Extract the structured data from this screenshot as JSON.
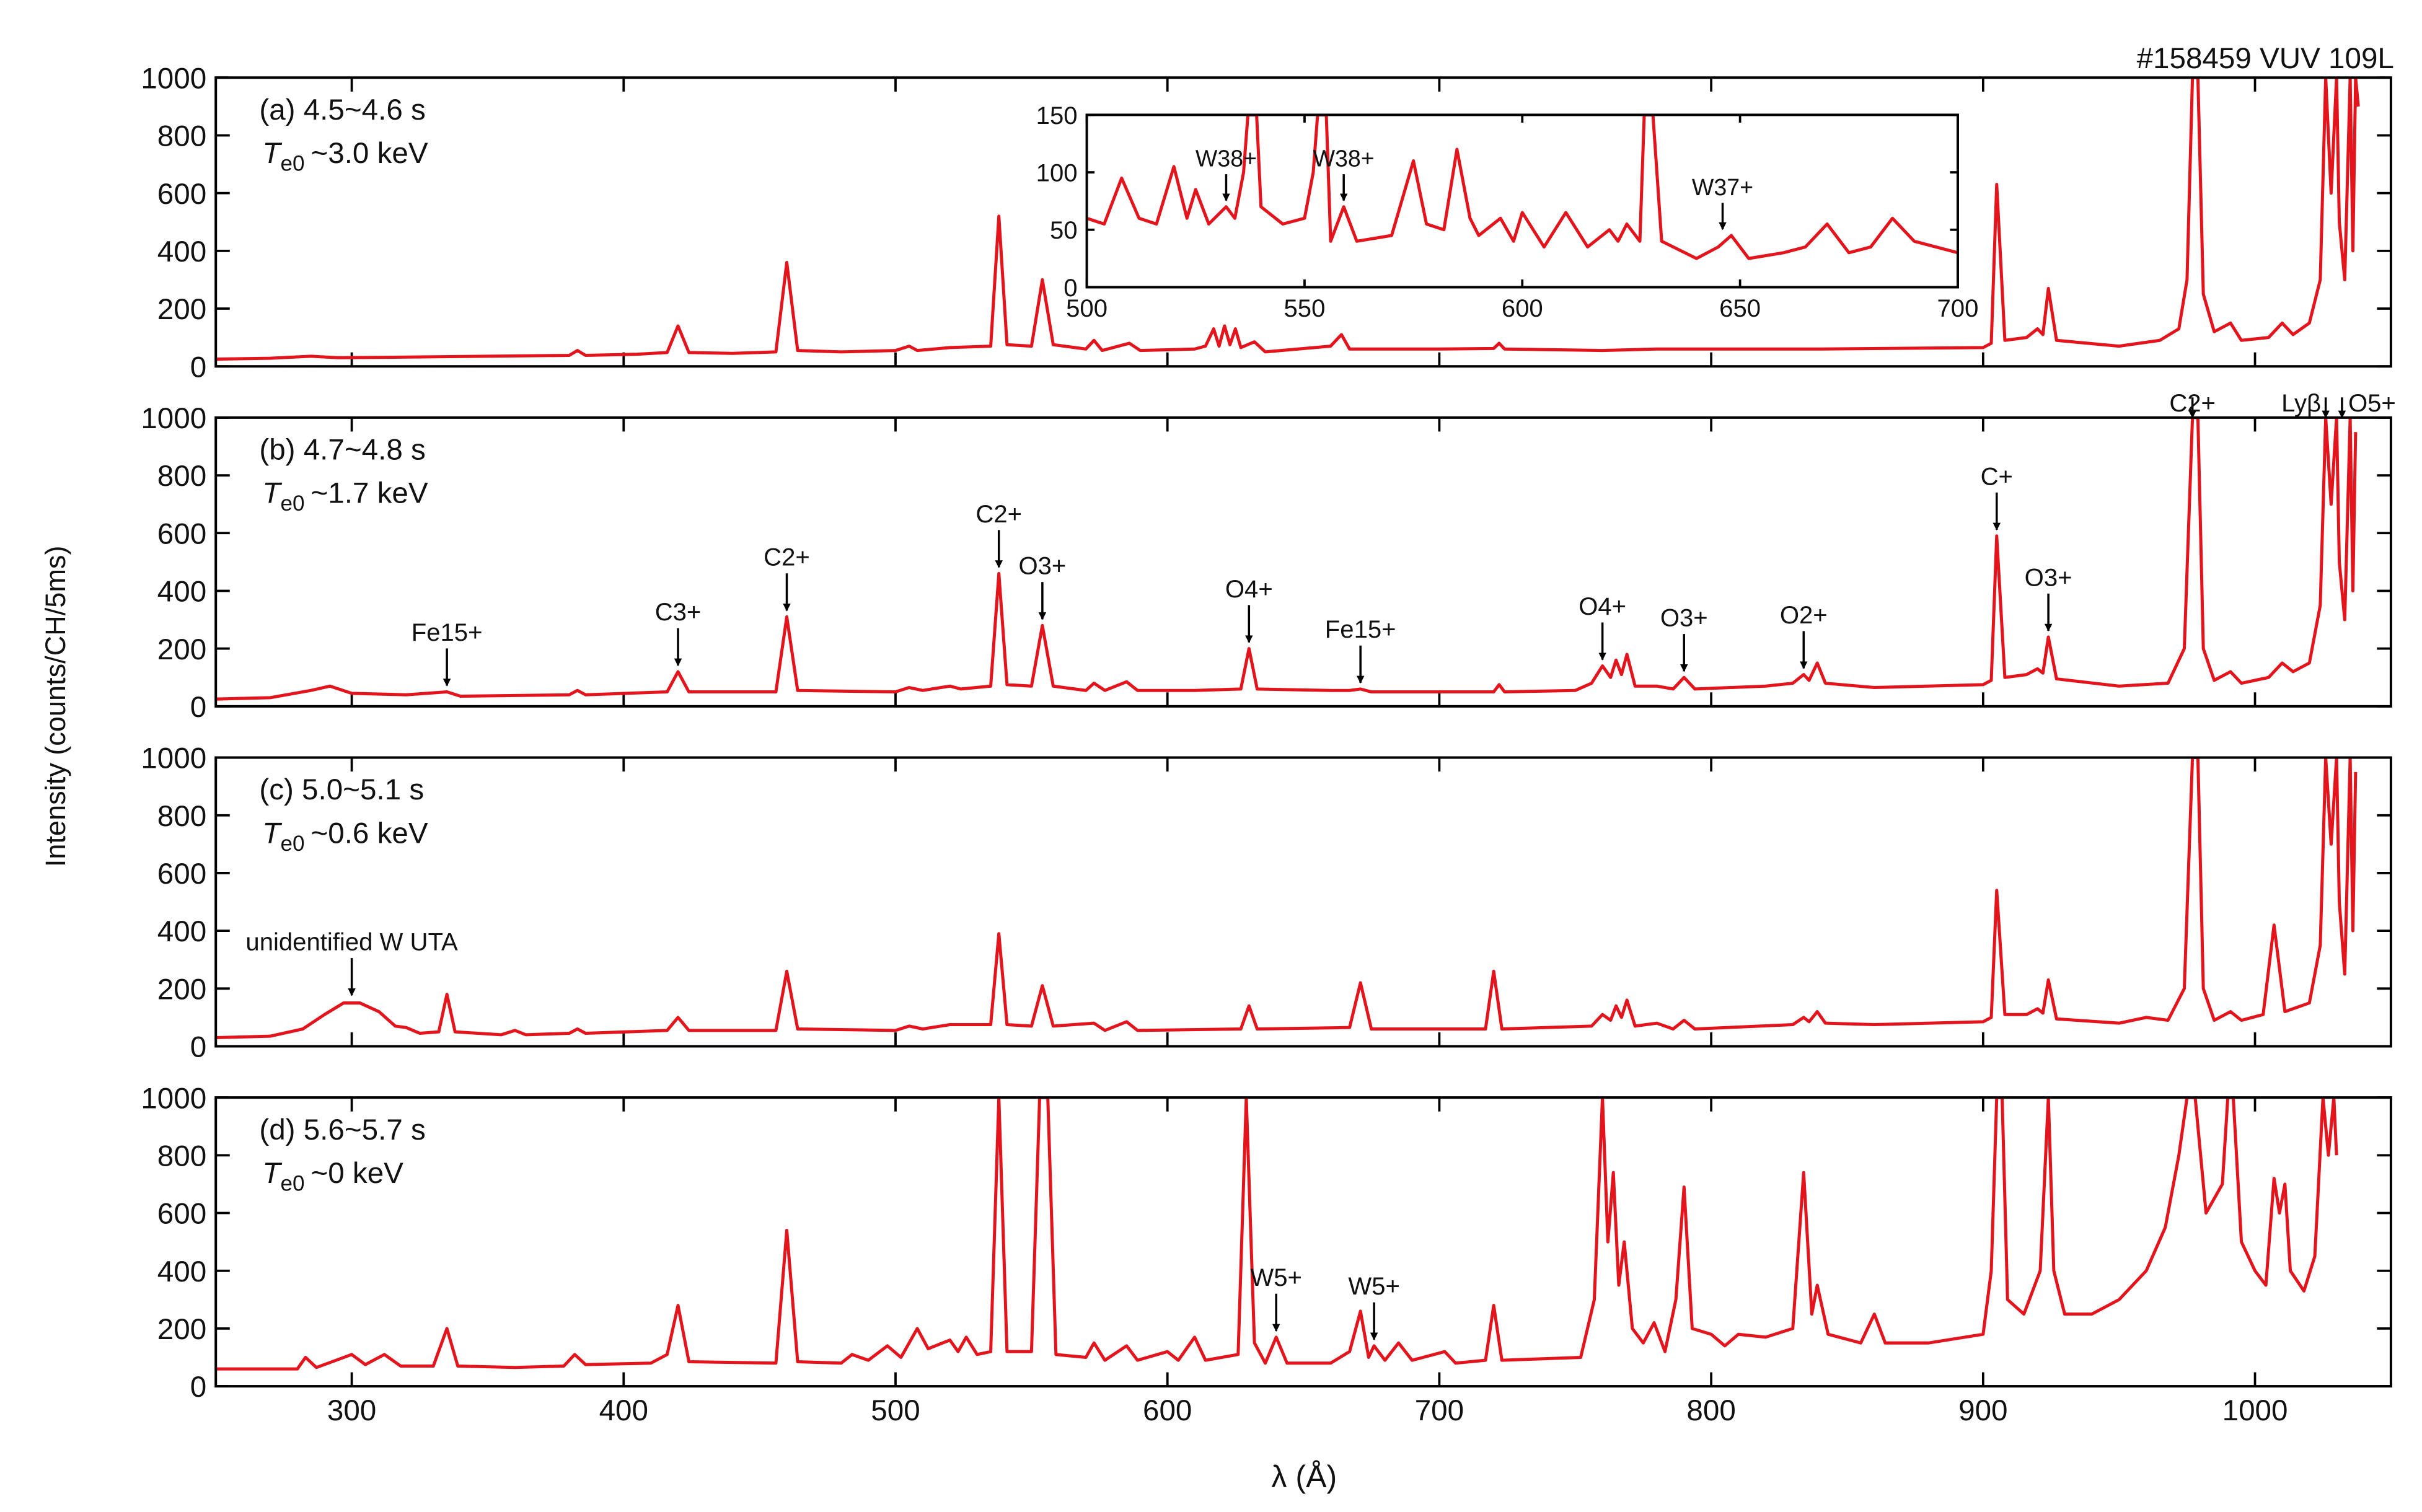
{
  "figure": {
    "title": "#158459 VUV 109L",
    "y_label": "Intensity (counts/CH/5ms)",
    "x_label": "λ (Å)"
  },
  "chart_data": [
    {
      "type": "line",
      "label": "(a) 4.5~4.6 s",
      "temperature": {
        "symbol": "T",
        "subscript": "e0",
        "value": "~3.0 keV"
      },
      "color": "#e3141c",
      "xlim": [
        250,
        1050
      ],
      "ylim": [
        0,
        1000
      ],
      "xticks": [
        300,
        400,
        500,
        600,
        700,
        800,
        900,
        1000
      ],
      "yticks": [
        0,
        200,
        400,
        600,
        800,
        1000
      ],
      "xtick_labels": false,
      "x": [
        250,
        270,
        285,
        295,
        320,
        380,
        383,
        386,
        405,
        416,
        420,
        424,
        440,
        456,
        460,
        464,
        480,
        500,
        505,
        508,
        520,
        535,
        538,
        541,
        550,
        554,
        558,
        570,
        573,
        576,
        586,
        590,
        610,
        614,
        617,
        619,
        621,
        623,
        625,
        627,
        632,
        636,
        660,
        664,
        667,
        700,
        720,
        722,
        724,
        760,
        780,
        840,
        900,
        903,
        905,
        908,
        916,
        920,
        922,
        924,
        927,
        950,
        965,
        972,
        975,
        977,
        979,
        981,
        985,
        991,
        995,
        1005,
        1010,
        1014,
        1020,
        1024,
        1026,
        1028,
        1030,
        1031,
        1033,
        1035,
        1036,
        1037,
        1038
      ],
      "values": [
        25,
        28,
        35,
        30,
        32,
        38,
        55,
        38,
        42,
        48,
        140,
        48,
        45,
        50,
        360,
        55,
        50,
        55,
        70,
        55,
        65,
        70,
        520,
        75,
        70,
        300,
        75,
        60,
        90,
        55,
        80,
        55,
        60,
        70,
        130,
        70,
        140,
        75,
        130,
        65,
        85,
        50,
        70,
        110,
        60,
        60,
        62,
        80,
        60,
        55,
        60,
        60,
        65,
        80,
        630,
        90,
        100,
        130,
        110,
        270,
        90,
        70,
        90,
        130,
        300,
        1000,
        1000,
        250,
        120,
        150,
        90,
        100,
        150,
        110,
        150,
        300,
        1000,
        600,
        1000,
        500,
        300,
        1000,
        400,
        1000,
        900
      ],
      "annotations": []
    },
    {
      "type": "line",
      "label": "(b) 4.7~4.8 s",
      "temperature": {
        "symbol": "T",
        "subscript": "e0",
        "value": "~1.7 keV"
      },
      "color": "#e3141c",
      "xlim": [
        250,
        1050
      ],
      "ylim": [
        0,
        1000
      ],
      "xticks": [
        300,
        400,
        500,
        600,
        700,
        800,
        900,
        1000
      ],
      "yticks": [
        0,
        200,
        400,
        600,
        800,
        1000
      ],
      "xtick_labels": false,
      "x": [
        250,
        270,
        285,
        292,
        300,
        320,
        335,
        340,
        380,
        383,
        386,
        416,
        420,
        424,
        456,
        460,
        464,
        500,
        505,
        510,
        520,
        524,
        535,
        538,
        541,
        550,
        554,
        558,
        570,
        573,
        577,
        585,
        589,
        610,
        627,
        630,
        633,
        660,
        667,
        671,
        675,
        700,
        720,
        722,
        724,
        750,
        756,
        760,
        763,
        765,
        767,
        769,
        772,
        780,
        786,
        790,
        794,
        820,
        830,
        834,
        836,
        839,
        842,
        860,
        900,
        903,
        905,
        908,
        916,
        920,
        922,
        924,
        927,
        950,
        968,
        974,
        977,
        979,
        981,
        985,
        991,
        995,
        1005,
        1010,
        1014,
        1020,
        1024,
        1026,
        1028,
        1030,
        1031,
        1033,
        1035,
        1036,
        1037
      ],
      "values": [
        25,
        30,
        55,
        70,
        45,
        40,
        50,
        35,
        40,
        55,
        40,
        50,
        120,
        50,
        50,
        310,
        55,
        50,
        65,
        55,
        70,
        60,
        70,
        460,
        75,
        70,
        280,
        70,
        55,
        80,
        55,
        85,
        55,
        55,
        60,
        200,
        60,
        55,
        55,
        60,
        50,
        50,
        50,
        75,
        50,
        55,
        80,
        140,
        100,
        160,
        110,
        180,
        70,
        70,
        60,
        100,
        60,
        70,
        80,
        110,
        90,
        150,
        80,
        65,
        75,
        90,
        590,
        100,
        110,
        130,
        115,
        240,
        95,
        70,
        80,
        200,
        1000,
        1000,
        200,
        90,
        120,
        80,
        100,
        150,
        120,
        150,
        350,
        1000,
        700,
        1000,
        500,
        300,
        1000,
        400,
        950
      ],
      "annotations": [
        {
          "text": "Fe15+",
          "x": 335,
          "y": 50
        },
        {
          "text": "C3+",
          "x": 420,
          "y": 120
        },
        {
          "text": "C2+",
          "x": 460,
          "y": 310
        },
        {
          "text": "C2+",
          "x": 538,
          "y": 460
        },
        {
          "text": "O3+",
          "x": 554,
          "y": 280
        },
        {
          "text": "O4+",
          "x": 630,
          "y": 200
        },
        {
          "text": "Fe15+",
          "x": 671,
          "y": 60
        },
        {
          "text": "O4+",
          "x": 760,
          "y": 140
        },
        {
          "text": "O3+",
          "x": 790,
          "y": 100
        },
        {
          "text": "O2+",
          "x": 834,
          "y": 110
        },
        {
          "text": "C+",
          "x": 905,
          "y": 590
        },
        {
          "text": "O3+",
          "x": 924,
          "y": 240
        },
        {
          "text": "C2+",
          "x": 977,
          "y": 1000
        },
        {
          "text": "Lyβ",
          "x": 1026,
          "y": 1000
        },
        {
          "text": "O5+",
          "x": 1032,
          "y": 1000
        }
      ]
    },
    {
      "type": "line",
      "label": "(c) 5.0~5.1 s",
      "temperature": {
        "symbol": "T",
        "subscript": "e0",
        "value": "~0.6 keV"
      },
      "color": "#e3141c",
      "xlim": [
        250,
        1050
      ],
      "ylim": [
        0,
        1000
      ],
      "xticks": [
        300,
        400,
        500,
        600,
        700,
        800,
        900,
        1000
      ],
      "yticks": [
        0,
        200,
        400,
        600,
        800,
        1000
      ],
      "xtick_labels": false,
      "x": [
        250,
        270,
        282,
        290,
        297,
        303,
        310,
        316,
        320,
        325,
        332,
        335,
        338,
        355,
        360,
        364,
        380,
        383,
        386,
        416,
        420,
        424,
        456,
        460,
        464,
        500,
        505,
        510,
        520,
        535,
        538,
        541,
        550,
        554,
        558,
        573,
        577,
        585,
        589,
        627,
        630,
        633,
        667,
        671,
        675,
        717,
        720,
        723,
        756,
        760,
        763,
        765,
        767,
        769,
        772,
        780,
        786,
        790,
        794,
        830,
        834,
        836,
        839,
        842,
        860,
        900,
        903,
        905,
        908,
        916,
        920,
        922,
        924,
        927,
        950,
        960,
        968,
        974,
        977,
        979,
        981,
        985,
        991,
        995,
        1003,
        1007,
        1011,
        1020,
        1024,
        1026,
        1028,
        1030,
        1031,
        1033,
        1035,
        1036,
        1037
      ],
      "values": [
        30,
        35,
        60,
        110,
        150,
        150,
        120,
        70,
        65,
        45,
        50,
        180,
        50,
        40,
        55,
        40,
        45,
        60,
        45,
        55,
        100,
        55,
        55,
        260,
        60,
        55,
        70,
        60,
        75,
        75,
        390,
        75,
        70,
        210,
        70,
        80,
        55,
        85,
        55,
        60,
        140,
        60,
        65,
        220,
        60,
        60,
        260,
        60,
        70,
        110,
        90,
        140,
        100,
        160,
        70,
        80,
        60,
        90,
        60,
        75,
        100,
        85,
        120,
        80,
        75,
        85,
        100,
        540,
        110,
        110,
        130,
        115,
        230,
        95,
        80,
        100,
        90,
        200,
        1000,
        1000,
        200,
        90,
        120,
        90,
        110,
        420,
        120,
        150,
        350,
        1000,
        700,
        1000,
        500,
        250,
        1000,
        400,
        950
      ],
      "annotations": [
        {
          "text": "unidentified W UTA",
          "x": 300,
          "y": 155
        }
      ]
    },
    {
      "type": "line",
      "label": "(d) 5.6~5.7 s",
      "temperature": {
        "symbol": "T",
        "subscript": "e0",
        "value": "~0 keV"
      },
      "color": "#e3141c",
      "xlim": [
        250,
        1050
      ],
      "ylim": [
        0,
        1000
      ],
      "xticks": [
        300,
        400,
        500,
        600,
        700,
        800,
        900,
        1000
      ],
      "yticks": [
        0,
        200,
        400,
        600,
        800,
        1000
      ],
      "xtick_labels": true,
      "x": [
        250,
        280,
        283,
        287,
        300,
        305,
        312,
        318,
        330,
        335,
        339,
        360,
        378,
        382,
        386,
        410,
        416,
        420,
        424,
        456,
        460,
        464,
        480,
        484,
        490,
        497,
        502,
        508,
        512,
        520,
        523,
        526,
        530,
        535,
        538,
        541,
        550,
        553,
        556,
        559,
        570,
        573,
        577,
        585,
        589,
        600,
        604,
        610,
        614,
        626,
        629,
        632,
        636,
        640,
        644,
        660,
        667,
        671,
        674,
        676,
        680,
        685,
        690,
        702,
        706,
        717,
        720,
        723,
        752,
        757,
        760,
        762,
        764,
        766,
        768,
        771,
        775,
        779,
        783,
        787,
        790,
        793,
        800,
        805,
        810,
        820,
        830,
        834,
        837,
        839,
        843,
        855,
        860,
        864,
        880,
        900,
        903,
        905,
        907,
        909,
        915,
        921,
        924,
        926,
        930,
        940,
        950,
        960,
        967,
        972,
        975,
        978,
        982,
        988,
        990,
        992,
        995,
        1000,
        1004,
        1007,
        1009,
        1011,
        1013,
        1018,
        1022,
        1025,
        1027,
        1029,
        1030
      ],
      "values": [
        60,
        60,
        100,
        65,
        110,
        75,
        110,
        70,
        70,
        200,
        70,
        65,
        70,
        110,
        75,
        80,
        110,
        280,
        85,
        80,
        540,
        85,
        80,
        110,
        90,
        140,
        100,
        200,
        130,
        160,
        120,
        170,
        110,
        120,
        1000,
        120,
        120,
        1000,
        1000,
        110,
        100,
        150,
        90,
        140,
        90,
        120,
        90,
        170,
        90,
        110,
        1000,
        150,
        80,
        170,
        80,
        80,
        120,
        260,
        100,
        140,
        90,
        150,
        90,
        120,
        80,
        90,
        280,
        90,
        100,
        300,
        1000,
        500,
        740,
        350,
        500,
        200,
        150,
        220,
        120,
        300,
        690,
        200,
        180,
        140,
        180,
        170,
        200,
        740,
        250,
        350,
        180,
        150,
        250,
        150,
        150,
        180,
        400,
        1000,
        1000,
        300,
        250,
        400,
        1000,
        400,
        250,
        250,
        300,
        400,
        550,
        800,
        1000,
        1000,
        600,
        700,
        1000,
        1000,
        500,
        400,
        350,
        720,
        600,
        700,
        400,
        330,
        450,
        1000,
        800,
        1000,
        800
      ],
      "annotations": [
        {
          "text": "W5+",
          "x": 640,
          "y": 170
        },
        {
          "text": "W5+",
          "x": 676,
          "y": 140
        }
      ]
    },
    {
      "type": "line",
      "color": "#e3141c",
      "xlim": [
        500,
        700
      ],
      "ylim": [
        0,
        150
      ],
      "xticks": [
        500,
        550,
        600,
        650,
        700
      ],
      "yticks": [
        0,
        50,
        100,
        150
      ],
      "xtick_labels": true,
      "x": [
        500,
        504,
        508,
        512,
        516,
        520,
        523,
        525,
        528,
        532,
        534,
        536,
        537,
        539,
        540,
        545,
        550,
        552,
        553,
        555,
        556,
        559,
        562,
        570,
        575,
        578,
        582,
        585,
        588,
        590,
        595,
        598,
        600,
        605,
        610,
        615,
        620,
        622,
        624,
        627,
        628,
        630,
        632,
        640,
        645,
        648,
        652,
        660,
        665,
        670,
        675,
        680,
        685,
        690,
        695,
        700
      ],
      "values": [
        60,
        55,
        95,
        60,
        55,
        105,
        60,
        85,
        55,
        70,
        60,
        100,
        150,
        150,
        70,
        55,
        60,
        100,
        150,
        150,
        40,
        70,
        40,
        45,
        110,
        55,
        50,
        120,
        60,
        45,
        60,
        40,
        65,
        35,
        65,
        35,
        50,
        40,
        55,
        40,
        150,
        150,
        40,
        25,
        35,
        45,
        25,
        30,
        35,
        55,
        30,
        35,
        60,
        40,
        35,
        30
      ],
      "annotations": [
        {
          "text": "W38+",
          "x": 532,
          "y": 70
        },
        {
          "text": "W38+",
          "x": 559,
          "y": 70
        },
        {
          "text": "W37+",
          "x": 646,
          "y": 45
        }
      ]
    }
  ]
}
